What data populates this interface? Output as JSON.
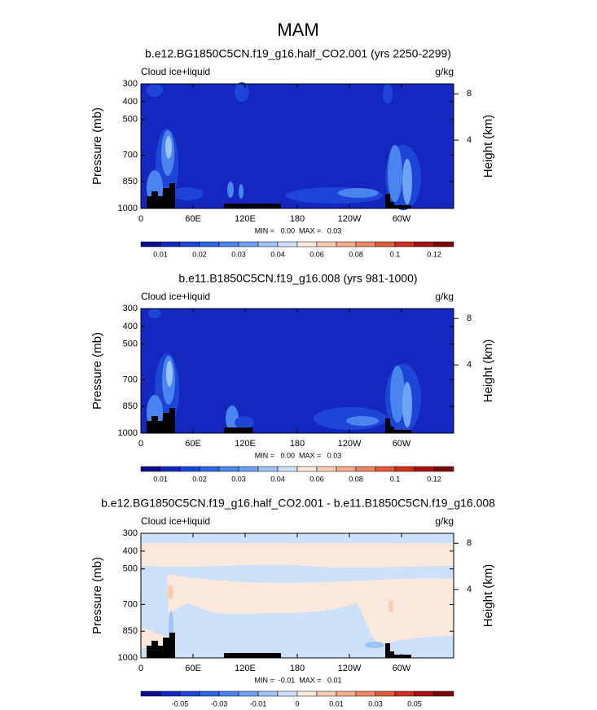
{
  "title": "MAM",
  "chart_data": [
    {
      "type": "contour",
      "title": "b.e12.BG1850C5CN.f19_g16.half_CO2.001 (yrs 2250-2299)",
      "left_label": "Cloud ice+liquid",
      "right_label": "g/kg",
      "y_label": "Pressure (mb)",
      "y2_label": "Height (km)",
      "ylim": [
        1000,
        300
      ],
      "yticks": [
        300,
        400,
        500,
        700,
        850,
        1000
      ],
      "y2ticks": [
        8,
        4
      ],
      "xlim": [
        0,
        360
      ],
      "xticks": [
        0,
        {
          "value": 60,
          "label": "60E"
        },
        {
          "value": 120,
          "label": "120E"
        },
        180,
        {
          "value": 240,
          "label": "120W"
        },
        {
          "value": 300,
          "label": "60W"
        }
      ],
      "stats": "MIN =   0.00  MAX =   0.03",
      "colorbar": {
        "colors": [
          "#0c0c8c",
          "#1428c0",
          "#1e46d6",
          "#2e64e6",
          "#4a84ee",
          "#6ea2f2",
          "#9cc2f6",
          "#cce0fa",
          "#fbe8dc",
          "#f8cdb6",
          "#f4ab8c",
          "#ee8564",
          "#e25a3c",
          "#cc2c1c",
          "#a81212",
          "#7c0808"
        ],
        "levels": [
          0.01,
          null,
          0.02,
          null,
          0.03,
          null,
          0.04,
          null,
          0.06,
          null,
          0.08,
          null,
          0.1,
          null,
          0.12
        ]
      }
    },
    {
      "type": "contour",
      "title": "b.e11.B1850C5CN.f19_g16.008 (yrs 981-1000)",
      "left_label": "Cloud ice+liquid",
      "right_label": "g/kg",
      "y_label": "Pressure (mb)",
      "y2_label": "Height (km)",
      "ylim": [
        1000,
        300
      ],
      "yticks": [
        300,
        400,
        500,
        700,
        850,
        1000
      ],
      "y2ticks": [
        8,
        4
      ],
      "xlim": [
        0,
        360
      ],
      "xticks": [
        0,
        {
          "value": 60,
          "label": "60E"
        },
        {
          "value": 120,
          "label": "120E"
        },
        180,
        {
          "value": 240,
          "label": "120W"
        },
        {
          "value": 300,
          "label": "60W"
        }
      ],
      "stats": "MIN =   0.00  MAX =   0.03",
      "colorbar": {
        "colors": [
          "#0c0c8c",
          "#1428c0",
          "#1e46d6",
          "#2e64e6",
          "#4a84ee",
          "#6ea2f2",
          "#9cc2f6",
          "#cce0fa",
          "#fbe8dc",
          "#f8cdb6",
          "#f4ab8c",
          "#ee8564",
          "#e25a3c",
          "#cc2c1c",
          "#a81212",
          "#7c0808"
        ],
        "levels": [
          0.01,
          null,
          0.02,
          null,
          0.03,
          null,
          0.04,
          null,
          0.06,
          null,
          0.08,
          null,
          0.1,
          null,
          0.12
        ]
      }
    },
    {
      "type": "contour",
      "title": "b.e12.BG1850C5CN.f19_g16.half_CO2.001 - b.e11.B1850C5CN.f19_g16.008",
      "left_label": "Cloud ice+liquid",
      "right_label": "g/kg",
      "y_label": "Pressure (mb)",
      "y2_label": "Height (km)",
      "ylim": [
        1000,
        300
      ],
      "yticks": [
        300,
        400,
        500,
        700,
        850,
        1000
      ],
      "y2ticks": [
        8,
        4
      ],
      "xlim": [
        0,
        360
      ],
      "xticks": [
        0,
        {
          "value": 60,
          "label": "60E"
        },
        {
          "value": 120,
          "label": "120E"
        },
        180,
        {
          "value": 240,
          "label": "120W"
        },
        {
          "value": 300,
          "label": "60W"
        }
      ],
      "stats": "MIN =  -0.01  MAX =   0.01",
      "colorbar": {
        "colors": [
          "#0c0c8c",
          "#1428c0",
          "#1e46d6",
          "#2e64e6",
          "#4a84ee",
          "#6ea2f2",
          "#9cc2f6",
          "#cce0fa",
          "#fbe8dc",
          "#f8cdb6",
          "#f4ab8c",
          "#ee8564",
          "#e25a3c",
          "#cc2c1c",
          "#a81212",
          "#7c0808"
        ],
        "levels": [
          null,
          -0.05,
          null,
          -0.03,
          null,
          -0.01,
          null,
          0,
          null,
          0.01,
          null,
          0.03,
          null,
          0.05,
          null
        ]
      }
    }
  ]
}
